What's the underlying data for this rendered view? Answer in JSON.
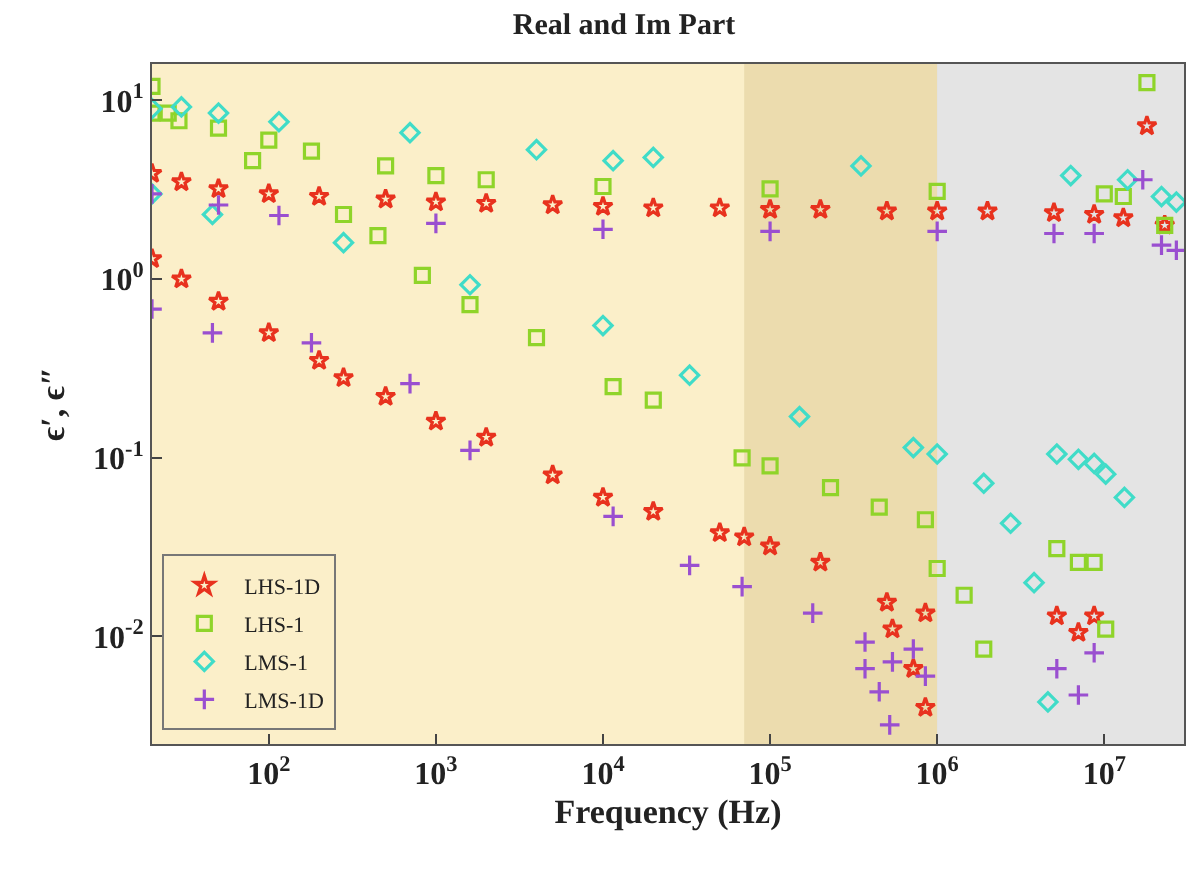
{
  "chart_data": {
    "type": "scatter",
    "title": "Real and Im Part",
    "xlabel": "Frequency (Hz)",
    "ylabel": "ϵ′, ϵ″",
    "log": "xy",
    "grid": true,
    "legend": "bottom left",
    "xlim": [
      20,
      30000000
    ],
    "ylim": [
      0.0025,
      16
    ],
    "xticks": [
      {
        "value": 100,
        "label": "10$^{2}$"
      },
      {
        "value": 1000,
        "label": "10$^{3}$"
      },
      {
        "value": 10000,
        "label": "10$^{4}$"
      },
      {
        "value": 100000,
        "label": "10$^{5}$"
      },
      {
        "value": 1000000,
        "label": "10$^{6}$"
      },
      {
        "value": 10000000,
        "label": "10$^{7}$"
      }
    ],
    "yticks": [
      {
        "value": 0.01,
        "label": "10$^{-2}$"
      },
      {
        "value": 0.1,
        "label": "10$^{-1}$"
      },
      {
        "value": 1,
        "label": "10$^{0}$"
      },
      {
        "value": 10,
        "label": "10$^{1}$"
      }
    ],
    "bands": [
      {
        "axis": "x",
        "from": 20,
        "to": 1000000,
        "color": "#fbefc9"
      },
      {
        "axis": "x",
        "from": 70000,
        "to": 1000000,
        "color": "#ecdcae"
      },
      {
        "axis": "x",
        "from": 1000000,
        "to": 30000000,
        "color": "#e4e4e4"
      }
    ],
    "series": [
      {
        "name": "LHS-1D",
        "color": "#e8321e",
        "marker": "star",
        "x": [
          20,
          30,
          50,
          100,
          200,
          500,
          1000,
          2000,
          5000,
          10000,
          20000,
          50000,
          100000,
          200000,
          500000,
          1000000,
          2000000,
          5000000,
          8700000,
          13000000,
          18000000,
          23000000,
          20,
          30,
          50,
          100,
          200,
          280,
          500,
          1000,
          2000,
          5000,
          10000,
          20000,
          50000,
          70000,
          100000,
          200000,
          500000,
          540000,
          720000,
          850000,
          850000,
          5200000,
          7000000,
          8700000
        ],
        "values": [
          3.9,
          3.5,
          3.2,
          3.0,
          2.9,
          2.8,
          2.7,
          2.65,
          2.6,
          2.55,
          2.5,
          2.5,
          2.45,
          2.45,
          2.4,
          2.4,
          2.4,
          2.35,
          2.3,
          2.2,
          7.2,
          2.0,
          1.3,
          1.0,
          0.75,
          0.5,
          0.35,
          0.28,
          0.22,
          0.16,
          0.13,
          0.08,
          0.06,
          0.05,
          0.038,
          0.036,
          0.032,
          0.026,
          0.0155,
          0.011,
          0.0066,
          0.0135,
          0.004,
          0.013,
          0.0105,
          0.013
        ]
      },
      {
        "name": "LHS-1",
        "color": "#8fd42a",
        "marker": "square",
        "x": [
          20,
          25,
          50,
          100,
          180,
          500,
          1000,
          2000,
          10000,
          100000,
          1000000,
          10000000,
          13000000,
          18000000,
          23000000,
          20,
          29,
          80,
          280,
          450,
          830,
          1600,
          4000,
          11500,
          20000,
          68000,
          100000,
          230000,
          450000,
          850000,
          1000000,
          1450000,
          1900000,
          5200000,
          7000000,
          8700000,
          10200000
        ],
        "values": [
          12,
          8.5,
          7,
          6,
          5.2,
          4.3,
          3.8,
          3.6,
          3.3,
          3.2,
          3.1,
          3.0,
          2.9,
          12.6,
          2.0,
          8.5,
          7.7,
          4.6,
          2.3,
          1.75,
          1.05,
          0.72,
          0.47,
          0.25,
          0.21,
          0.1,
          0.09,
          0.068,
          0.053,
          0.045,
          0.024,
          0.017,
          0.0085,
          0.031,
          0.026,
          0.026,
          0.011
        ]
      },
      {
        "name": "LMS-1",
        "color": "#40dcc8",
        "marker": "diamond",
        "x": [
          20,
          30,
          50,
          115,
          700,
          4000,
          11500,
          20000,
          350000,
          6300000,
          13800000,
          22000000,
          27000000,
          20,
          46,
          280,
          1600,
          10000,
          33000,
          150000,
          720000,
          1000000,
          1900000,
          2750000,
          3800000,
          4600000,
          5200000,
          7000000,
          8700000,
          10200000,
          13200000
        ],
        "values": [
          9,
          9.2,
          8.5,
          7.6,
          6.6,
          5.3,
          4.6,
          4.8,
          4.3,
          3.8,
          3.6,
          2.9,
          2.7,
          3.0,
          2.3,
          1.6,
          0.93,
          0.55,
          0.29,
          0.17,
          0.114,
          0.105,
          0.072,
          0.043,
          0.02,
          0.0043,
          0.105,
          0.098,
          0.093,
          0.081,
          0.06
        ]
      },
      {
        "name": "LMS-1D",
        "color": "#9a4fd0",
        "marker": "cross",
        "x": [
          20,
          50,
          115,
          1000,
          10000,
          100000,
          1000000,
          5000000,
          8700000,
          17000000,
          22000000,
          27000000,
          20,
          46,
          180,
          700,
          1600,
          11500,
          33000,
          68000,
          180000,
          370000,
          540000,
          720000,
          370000,
          450000,
          520000,
          850000,
          5200000,
          7000000,
          8700000
        ],
        "values": [
          3.0,
          2.6,
          2.27,
          2.05,
          1.9,
          1.85,
          1.85,
          1.8,
          1.8,
          3.6,
          1.55,
          1.45,
          0.68,
          0.5,
          0.44,
          0.26,
          0.11,
          0.047,
          0.025,
          0.019,
          0.0135,
          0.0093,
          0.0072,
          0.0085,
          0.0066,
          0.0049,
          0.0032,
          0.006,
          0.0066,
          0.0047,
          0.0081
        ]
      }
    ]
  }
}
